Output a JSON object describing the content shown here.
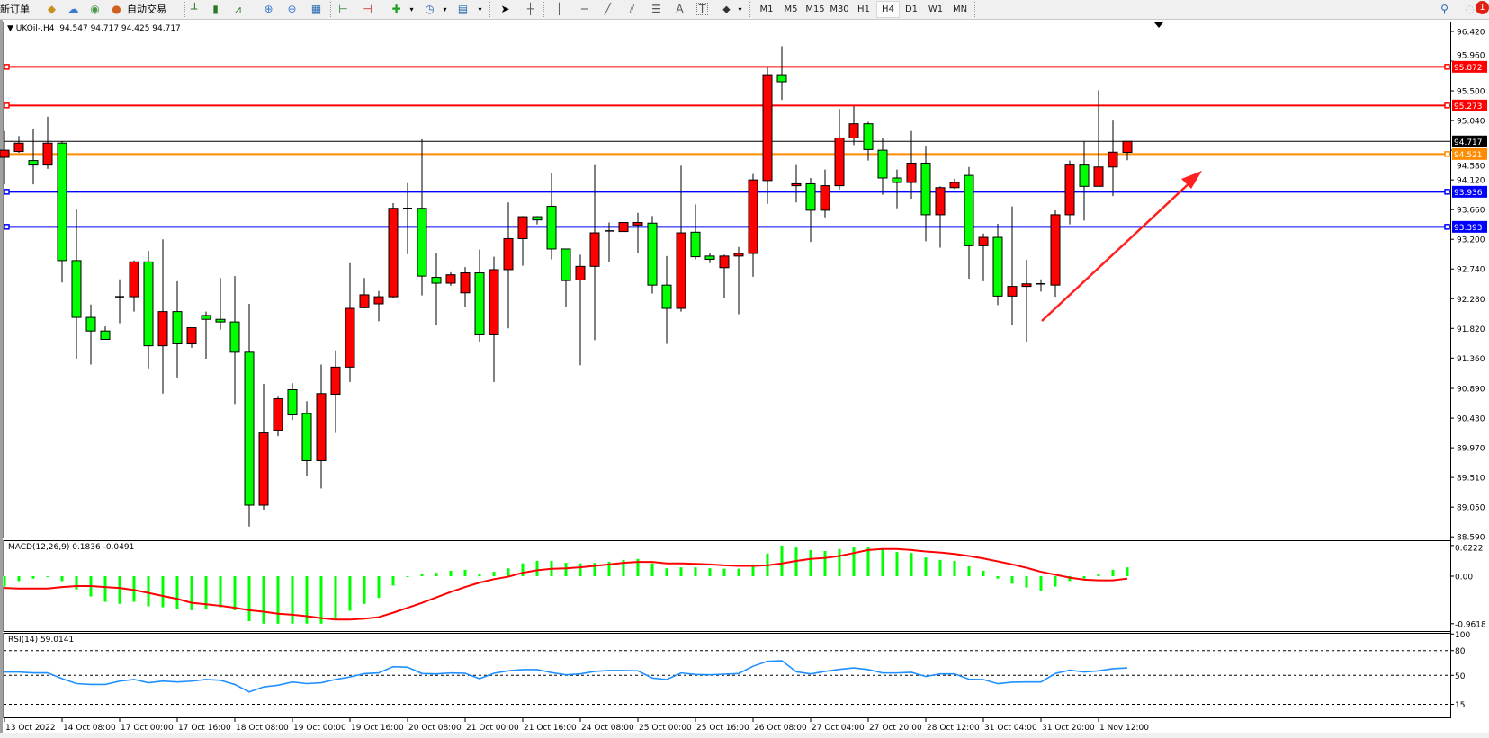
{
  "toolbar": {
    "new_order": "新订单",
    "auto_trading": "自动交易",
    "timeframes": [
      "M1",
      "M5",
      "M15",
      "M30",
      "H1",
      "H4",
      "D1",
      "W1",
      "MN"
    ],
    "active_timeframe": "H4",
    "notification_count": "1",
    "icons": [
      "folder-icon",
      "profiles-icon",
      "signal-icon",
      "auto-trading-icon",
      "bar-chart-icon",
      "candlestick-icon",
      "line-chart-icon",
      "zoom-in-icon",
      "zoom-out-icon",
      "tile-windows-icon",
      "scroll-icon",
      "shift-icon",
      "new-chart-icon",
      "clock-icon",
      "template-icon",
      "cursor-icon",
      "crosshair-icon",
      "vertical-line-icon",
      "horizontal-line-icon",
      "trend-line-icon",
      "equidistant-channel-icon",
      "fibonacci-icon",
      "text-icon",
      "text-label-icon",
      "arrows-icon",
      "search-icon",
      "notification-icon"
    ],
    "text_tool": "A",
    "text_label_tool": "T"
  },
  "chart_data": [
    {
      "type": "candlestick",
      "symbol_label": "UKOil-,H4",
      "ohlc_label": "94.547 94.717 94.425 94.717",
      "bull_color": "#ff0000",
      "bear_color": "#00ff00",
      "ylim": [
        88.59,
        96.42
      ],
      "y_ticks": [
        "96.420",
        "95.960",
        "95.500",
        "95.040",
        "94.580",
        "94.120",
        "93.660",
        "93.200",
        "92.740",
        "92.280",
        "91.820",
        "91.360",
        "90.890",
        "90.430",
        "89.970",
        "89.510",
        "89.050",
        "88.590"
      ],
      "x_labels": [
        "13 Oct 2022",
        "14 Oct 08:00",
        "17 Oct 00:00",
        "17 Oct 16:00",
        "18 Oct 08:00",
        "19 Oct 00:00",
        "19 Oct 16:00",
        "20 Oct 08:00",
        "21 Oct 00:00",
        "21 Oct 16:00",
        "24 Oct 08:00",
        "25 Oct 00:00",
        "25 Oct 16:00",
        "26 Oct 08:00",
        "27 Oct 04:00",
        "27 Oct 20:00",
        "28 Oct 12:00",
        "31 Oct 04:00",
        "31 Oct 20:00",
        "1 Nov 12:00"
      ],
      "current_price": {
        "value": 94.717,
        "label": "94.717",
        "color": "#000000"
      },
      "hlines": [
        {
          "value": 95.872,
          "label": "95.872",
          "color": "#ff0000"
        },
        {
          "value": 95.273,
          "label": "95.273",
          "color": "#ff0000"
        },
        {
          "value": 94.521,
          "label": "94.521",
          "color": "#ff8c00"
        },
        {
          "value": 93.936,
          "label": "93.936",
          "color": "#0000ff"
        },
        {
          "value": 93.393,
          "label": "93.393",
          "color": "#0000ff"
        }
      ],
      "annotation_arrow": {
        "color": "#ff2020",
        "direction": "up-right"
      },
      "candles_ohlc": [
        [
          94.47,
          94.88,
          94.05,
          94.58
        ],
        [
          94.56,
          94.8,
          94.54,
          94.69
        ],
        [
          94.42,
          94.91,
          94.05,
          94.35
        ],
        [
          94.35,
          95.1,
          94.29,
          94.69
        ],
        [
          94.69,
          94.72,
          92.53,
          92.87
        ],
        [
          92.87,
          93.66,
          91.35,
          91.99
        ],
        [
          91.99,
          92.19,
          91.26,
          91.78
        ],
        [
          91.78,
          91.85,
          91.65,
          91.65
        ],
        [
          92.31,
          92.58,
          91.9,
          92.31
        ],
        [
          92.31,
          92.87,
          92.08,
          92.85
        ],
        [
          92.85,
          93.02,
          91.2,
          91.55
        ],
        [
          91.55,
          93.2,
          90.81,
          92.08
        ],
        [
          92.08,
          92.55,
          91.06,
          91.58
        ],
        [
          91.58,
          91.83,
          91.52,
          91.83
        ],
        [
          92.02,
          92.08,
          91.35,
          91.96
        ],
        [
          91.96,
          92.6,
          91.8,
          91.92
        ],
        [
          91.92,
          92.63,
          90.65,
          91.45
        ],
        [
          91.45,
          92.2,
          88.75,
          89.08
        ],
        [
          89.08,
          90.96,
          89.01,
          90.2
        ],
        [
          90.24,
          90.76,
          90.15,
          90.73
        ],
        [
          90.87,
          90.97,
          90.4,
          90.48
        ],
        [
          90.5,
          90.69,
          89.53,
          89.77
        ],
        [
          89.77,
          91.26,
          89.34,
          90.81
        ],
        [
          90.8,
          91.48,
          90.2,
          91.22
        ],
        [
          91.22,
          92.83,
          90.99,
          92.13
        ],
        [
          92.14,
          92.6,
          92.13,
          92.34
        ],
        [
          92.2,
          92.4,
          91.93,
          92.31
        ],
        [
          92.31,
          93.76,
          92.29,
          93.68
        ],
        [
          93.68,
          94.07,
          92.97,
          93.68
        ],
        [
          93.68,
          94.75,
          92.33,
          92.63
        ],
        [
          92.61,
          92.99,
          91.88,
          92.52
        ],
        [
          92.52,
          92.69,
          92.48,
          92.65
        ],
        [
          92.37,
          92.77,
          92.15,
          92.68
        ],
        [
          92.68,
          93.04,
          91.61,
          91.72
        ],
        [
          91.72,
          92.93,
          90.99,
          92.73
        ],
        [
          92.73,
          93.77,
          91.82,
          93.21
        ],
        [
          93.21,
          93.56,
          92.79,
          93.55
        ],
        [
          93.55,
          93.56,
          93.43,
          93.5
        ],
        [
          93.71,
          94.23,
          92.89,
          93.05
        ],
        [
          93.05,
          93.05,
          92.15,
          92.56
        ],
        [
          92.57,
          92.96,
          91.25,
          92.78
        ],
        [
          92.78,
          94.35,
          91.64,
          93.3
        ],
        [
          93.31,
          93.46,
          92.85,
          93.33
        ],
        [
          93.32,
          93.46,
          93.32,
          93.46
        ],
        [
          93.42,
          93.61,
          92.99,
          93.46
        ],
        [
          93.45,
          93.56,
          92.36,
          92.49
        ],
        [
          92.49,
          92.94,
          91.58,
          92.13
        ],
        [
          92.13,
          94.34,
          92.08,
          93.3
        ],
        [
          93.31,
          93.74,
          92.89,
          92.93
        ],
        [
          92.94,
          92.98,
          92.83,
          92.89
        ],
        [
          92.76,
          92.96,
          92.29,
          92.94
        ],
        [
          92.94,
          93.08,
          92.04,
          92.98
        ],
        [
          92.98,
          94.21,
          92.62,
          94.12
        ],
        [
          94.11,
          95.86,
          93.75,
          95.75
        ],
        [
          95.75,
          96.19,
          95.36,
          95.64
        ],
        [
          94.03,
          94.35,
          93.77,
          94.06
        ],
        [
          94.06,
          94.15,
          93.16,
          93.65
        ],
        [
          93.65,
          94.28,
          93.54,
          94.03
        ],
        [
          94.03,
          95.22,
          93.97,
          94.77
        ],
        [
          94.77,
          95.26,
          94.66,
          94.99
        ],
        [
          94.99,
          95.02,
          94.42,
          94.59
        ],
        [
          94.58,
          94.77,
          93.89,
          94.15
        ],
        [
          94.15,
          94.28,
          93.68,
          94.08
        ],
        [
          94.08,
          94.88,
          93.83,
          94.38
        ],
        [
          94.38,
          94.65,
          93.17,
          93.58
        ],
        [
          93.58,
          94.02,
          93.07,
          94.0
        ],
        [
          94.0,
          94.14,
          93.98,
          94.08
        ],
        [
          94.19,
          94.32,
          92.59,
          93.1
        ],
        [
          93.1,
          93.29,
          92.55,
          93.23
        ],
        [
          93.23,
          93.44,
          92.18,
          92.32
        ],
        [
          92.32,
          93.71,
          91.88,
          92.47
        ],
        [
          92.47,
          92.88,
          91.61,
          92.51
        ],
        [
          92.51,
          92.58,
          92.39,
          92.51
        ],
        [
          92.49,
          93.65,
          92.31,
          93.58
        ],
        [
          93.58,
          94.42,
          93.43,
          94.35
        ],
        [
          94.35,
          94.72,
          93.49,
          94.02
        ],
        [
          94.02,
          95.51,
          94.02,
          94.32
        ],
        [
          94.32,
          95.04,
          93.87,
          94.55
        ],
        [
          94.547,
          94.717,
          94.425,
          94.717
        ]
      ]
    },
    {
      "type": "bar+line",
      "label": "MACD(12,26,9) 0.1836 -0.0491",
      "ylim": [
        -0.9618,
        0.6222
      ],
      "y_ticks": [
        "0.6222",
        "0.00",
        "-0.9618"
      ],
      "histogram_color": "#00ff00",
      "signal_color": "#ff0000",
      "macd": [
        -0.21,
        -0.1,
        -0.05,
        -0.01,
        -0.1,
        -0.27,
        -0.41,
        -0.52,
        -0.56,
        -0.52,
        -0.61,
        -0.63,
        -0.67,
        -0.69,
        -0.67,
        -0.63,
        -0.69,
        -0.91,
        -0.98,
        -0.98,
        -0.98,
        -1.03,
        -0.98,
        -0.88,
        -0.7,
        -0.56,
        -0.44,
        -0.19,
        -0.01,
        0.04,
        0.07,
        0.11,
        0.13,
        0.05,
        0.09,
        0.16,
        0.26,
        0.31,
        0.31,
        0.27,
        0.26,
        0.27,
        0.29,
        0.33,
        0.35,
        0.26,
        0.16,
        0.18,
        0.18,
        0.16,
        0.15,
        0.15,
        0.24,
        0.46,
        0.62,
        0.58,
        0.53,
        0.51,
        0.55,
        0.6,
        0.58,
        0.55,
        0.49,
        0.47,
        0.38,
        0.33,
        0.31,
        0.2,
        0.11,
        -0.05,
        -0.15,
        -0.23,
        -0.29,
        -0.21,
        -0.1,
        -0.05,
        0.05,
        0.13,
        0.18
      ],
      "signal": [
        -0.24,
        -0.25,
        -0.25,
        -0.25,
        -0.22,
        -0.2,
        -0.2,
        -0.22,
        -0.24,
        -0.28,
        -0.34,
        -0.4,
        -0.46,
        -0.54,
        -0.57,
        -0.6,
        -0.64,
        -0.69,
        -0.72,
        -0.76,
        -0.78,
        -0.81,
        -0.85,
        -0.88,
        -0.88,
        -0.86,
        -0.83,
        -0.74,
        -0.64,
        -0.54,
        -0.43,
        -0.32,
        -0.22,
        -0.13,
        -0.06,
        -0.01,
        0.07,
        0.12,
        0.15,
        0.16,
        0.18,
        0.21,
        0.24,
        0.27,
        0.29,
        0.29,
        0.26,
        0.26,
        0.25,
        0.24,
        0.22,
        0.21,
        0.21,
        0.22,
        0.26,
        0.31,
        0.35,
        0.37,
        0.41,
        0.47,
        0.53,
        0.55,
        0.55,
        0.53,
        0.5,
        0.48,
        0.45,
        0.41,
        0.36,
        0.3,
        0.24,
        0.17,
        0.09,
        0.03,
        -0.03,
        -0.07,
        -0.085,
        -0.085,
        -0.049
      ]
    },
    {
      "type": "line",
      "label": "RSI(14) 59.0141",
      "ylim": [
        0,
        100
      ],
      "y_ticks": [
        "100",
        "80",
        "50",
        "15"
      ],
      "levels": [
        80,
        50,
        15
      ],
      "line_color": "#1e90ff",
      "values": [
        54,
        54,
        53,
        53,
        46,
        40,
        39,
        39,
        43,
        45,
        41,
        43,
        42,
        43,
        45,
        44,
        39,
        30,
        36,
        38,
        42,
        40,
        41,
        45,
        48,
        52,
        53,
        60.5,
        59.8,
        52.2,
        51.8,
        52.9,
        52.5,
        46,
        52.5,
        55.4,
        56.9,
        56.9,
        53.3,
        50.7,
        51.8,
        54.7,
        55.8,
        55.8,
        55.4,
        46.7,
        44.9,
        52.9,
        51.1,
        50.7,
        51.4,
        52.2,
        61,
        67,
        67.7,
        54.3,
        51.8,
        54.7,
        57.2,
        59,
        56.9,
        52.9,
        52.9,
        53.6,
        48.6,
        51.8,
        51.8,
        45.3,
        44.9,
        39.9,
        41.7,
        42,
        42,
        52.2,
        56.2,
        54,
        55.4,
        58,
        59.0
      ]
    }
  ]
}
